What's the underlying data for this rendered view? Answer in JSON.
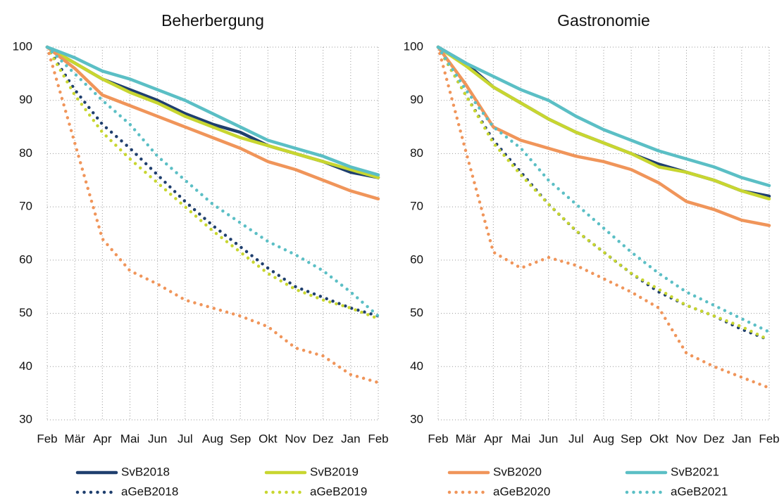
{
  "chart_data": [
    {
      "type": "line",
      "title": "Beherbergung",
      "categories": [
        "Feb",
        "Mär",
        "Apr",
        "Mai",
        "Jun",
        "Jul",
        "Aug",
        "Sep",
        "Okt",
        "Nov",
        "Dez",
        "Jan",
        "Feb"
      ],
      "ylim": [
        30,
        100
      ],
      "yticks": [
        30,
        40,
        50,
        60,
        70,
        80,
        90,
        100
      ],
      "grid": true,
      "series": [
        {
          "name": "SvB2018",
          "color": "#1f3f6e",
          "line_style": "solid",
          "values": [
            100,
            97,
            94,
            92,
            90,
            87.5,
            85.5,
            84,
            81.5,
            80,
            78.5,
            76.5,
            75.5
          ]
        },
        {
          "name": "aGeB2018",
          "color": "#1f3f6e",
          "line_style": "dotted",
          "values": [
            100,
            92,
            85.5,
            81,
            76,
            71,
            66.5,
            62.5,
            58.5,
            55,
            53,
            51,
            49.5
          ]
        },
        {
          "name": "SvB2019",
          "color": "#c8d630",
          "line_style": "solid",
          "values": [
            100,
            97,
            94,
            91.5,
            89.5,
            87,
            85,
            83,
            81.5,
            80,
            78.5,
            77,
            75.5
          ]
        },
        {
          "name": "aGeB2019",
          "color": "#c8d630",
          "line_style": "dotted",
          "values": [
            100,
            91,
            84,
            79,
            74.5,
            70,
            65.5,
            61.5,
            57.5,
            54.5,
            52.5,
            51,
            49
          ]
        },
        {
          "name": "SvB2020",
          "color": "#f0955a",
          "line_style": "solid",
          "values": [
            100,
            96,
            91,
            89,
            87,
            85,
            83,
            81,
            78.5,
            77,
            75,
            73,
            71.5
          ]
        },
        {
          "name": "aGeB2020",
          "color": "#f0955a",
          "line_style": "dotted",
          "values": [
            100,
            82,
            64,
            58,
            55.5,
            52.5,
            51,
            49.5,
            47.5,
            43.5,
            42,
            38.5,
            37
          ]
        },
        {
          "name": "SvB2021",
          "color": "#5bbfc5",
          "line_style": "solid",
          "values": [
            100,
            98,
            95.5,
            94,
            92,
            90,
            87.5,
            85,
            82.5,
            81,
            79.5,
            77.5,
            76
          ]
        },
        {
          "name": "aGeB2021",
          "color": "#5bbfc5",
          "line_style": "dotted",
          "values": [
            100,
            95,
            90,
            85.5,
            79.5,
            75,
            70.5,
            67,
            63.5,
            61,
            58,
            54,
            49.5
          ]
        }
      ]
    },
    {
      "type": "line",
      "title": "Gastronomie",
      "categories": [
        "Feb",
        "Mär",
        "Apr",
        "Mai",
        "Jun",
        "Jul",
        "Aug",
        "Sep",
        "Okt",
        "Nov",
        "Dez",
        "Jan",
        "Feb"
      ],
      "ylim": [
        30,
        100
      ],
      "yticks": [
        30,
        40,
        50,
        60,
        70,
        80,
        90,
        100
      ],
      "grid": true,
      "series": [
        {
          "name": "SvB2018",
          "color": "#1f3f6e",
          "line_style": "solid",
          "values": [
            100,
            97,
            92.5,
            89.5,
            86.5,
            84,
            82,
            80,
            78,
            76.5,
            75,
            73,
            72
          ]
        },
        {
          "name": "aGeB2018",
          "color": "#1f3f6e",
          "line_style": "dotted",
          "values": [
            100,
            91,
            82.5,
            76.5,
            70.5,
            65.5,
            61.5,
            57.5,
            54,
            51.5,
            49.5,
            47,
            45
          ]
        },
        {
          "name": "SvB2019",
          "color": "#c8d630",
          "line_style": "solid",
          "values": [
            100,
            96.5,
            92.5,
            89.5,
            86.5,
            84,
            82,
            80,
            77.5,
            76.5,
            75,
            73,
            71.5
          ]
        },
        {
          "name": "aGeB2019",
          "color": "#c8d630",
          "line_style": "dotted",
          "values": [
            100,
            91,
            82,
            76,
            70.5,
            65.5,
            61.5,
            57.5,
            54.5,
            51.5,
            49.5,
            47.5,
            45
          ]
        },
        {
          "name": "SvB2020",
          "color": "#f0955a",
          "line_style": "solid",
          "values": [
            100,
            93,
            85,
            82.5,
            81,
            79.5,
            78.5,
            77,
            74.5,
            71,
            69.5,
            67.5,
            66.5
          ]
        },
        {
          "name": "aGeB2020",
          "color": "#f0955a",
          "line_style": "dotted",
          "values": [
            100,
            80.5,
            61.5,
            58.5,
            60.5,
            59,
            56.5,
            54,
            51,
            42.5,
            40,
            38,
            36
          ]
        },
        {
          "name": "SvB2021",
          "color": "#5bbfc5",
          "line_style": "solid",
          "values": [
            100,
            97,
            94.5,
            92,
            90,
            87,
            84.5,
            82.5,
            80.5,
            79,
            77.5,
            75.5,
            74
          ]
        },
        {
          "name": "aGeB2021",
          "color": "#5bbfc5",
          "line_style": "dotted",
          "values": [
            100,
            92,
            85,
            81,
            75,
            70.5,
            66,
            61.5,
            57.5,
            54,
            51.5,
            49,
            46.5
          ]
        }
      ]
    }
  ]
}
